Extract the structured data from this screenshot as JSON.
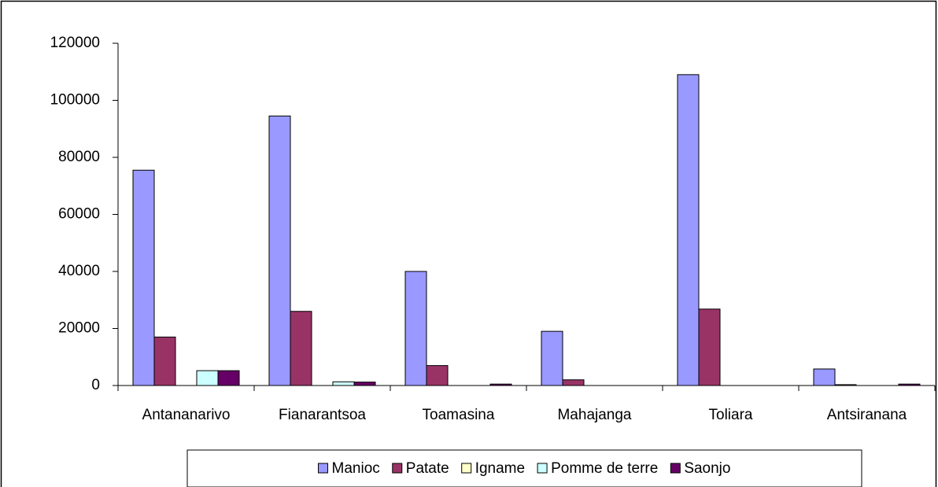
{
  "chart_data": {
    "type": "bar",
    "categories": [
      "Antananarivo",
      "Fianarantsoa",
      "Toamasina",
      "Mahajanga",
      "Toliara",
      "Antsiranana"
    ],
    "series": [
      {
        "name": "Manioc",
        "color": "#9999ff",
        "values": [
          75500,
          94500,
          40000,
          19000,
          109000,
          5800
        ]
      },
      {
        "name": "Patate",
        "color": "#993366",
        "values": [
          17000,
          26000,
          7000,
          2000,
          26800,
          300
        ]
      },
      {
        "name": "Igname",
        "color": "#ffffcc",
        "values": [
          0,
          0,
          0,
          0,
          0,
          0
        ]
      },
      {
        "name": "Pomme de terre",
        "color": "#ccffff",
        "values": [
          5200,
          1300,
          0,
          0,
          0,
          0
        ]
      },
      {
        "name": "Saonjo",
        "color": "#660066",
        "values": [
          5200,
          1200,
          500,
          0,
          0,
          500
        ]
      }
    ],
    "ylim": [
      0,
      120000
    ],
    "yticks": [
      0,
      20000,
      40000,
      60000,
      80000,
      100000,
      120000
    ],
    "legend": "bottom"
  }
}
